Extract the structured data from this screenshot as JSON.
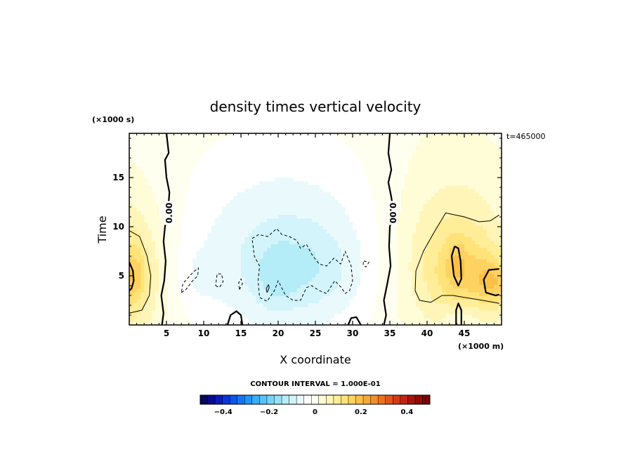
{
  "chart_data": {
    "type": "heatmap",
    "title": "density times vertical velocity",
    "xlabel": "X coordinate",
    "ylabel": "Time",
    "x_units": "(×1000 m)",
    "y_units": "(×1000 s)",
    "time_stamp": "t=465000",
    "xlim": [
      0,
      50
    ],
    "ylim": [
      0,
      19.5
    ],
    "x_ticks": [
      5,
      10,
      15,
      20,
      25,
      30,
      35,
      40,
      45
    ],
    "x_tick_labels": [
      "5",
      "10",
      "15",
      "20",
      "25",
      "30",
      "35",
      "40",
      "45"
    ],
    "y_ticks": [
      5,
      10,
      15
    ],
    "y_tick_labels": [
      "5",
      "10",
      "15"
    ],
    "contour_interval_text": "CONTOUR INTERVAL = 1.000E-01",
    "zero_contour_labels": [
      "0.00",
      "0.00"
    ],
    "zero_contour_label_positions": [
      [
        5.4,
        11.4
      ],
      [
        35.4,
        11.4
      ]
    ],
    "colorbar": {
      "range": [
        -0.5,
        0.5
      ],
      "tick_values": [
        -0.4,
        -0.2,
        0,
        0.2,
        0.4
      ],
      "tick_labels": [
        "−0.4",
        "−0.2",
        "0",
        "0.2",
        "0.4"
      ],
      "colors": [
        "#08085a",
        "#0a0a8c",
        "#0a1ab8",
        "#0a35d8",
        "#0a55ea",
        "#1275f0",
        "#1e95f5",
        "#3aaef8",
        "#58c2f8",
        "#78d4f5",
        "#96e2f5",
        "#b4ecf7",
        "#d2f4fa",
        "#eafafc",
        "#ffffff",
        "#fffff0",
        "#fffcd8",
        "#fff5b8",
        "#ffed98",
        "#ffe278",
        "#fed260",
        "#fcbf48",
        "#f8a838",
        "#f28f28",
        "#ea721c",
        "#e05518",
        "#d23b14",
        "#c02410",
        "#a8140c",
        "#900808",
        "#760404"
      ]
    },
    "blobs": [
      {
        "cx": -1.5,
        "cy": 5.5,
        "rx": 6.5,
        "ry": 9.5,
        "v": 0.09
      },
      {
        "cx": 0.0,
        "cy": 5.2,
        "rx": 3.5,
        "ry": 4.5,
        "v": 0.07
      },
      {
        "cx": 0.6,
        "cy": 5.0,
        "rx": 1.4,
        "ry": 2.2,
        "v": 0.04
      },
      {
        "cx": 21.0,
        "cy": 8.0,
        "rx": 14.5,
        "ry": 11.5,
        "v": -0.05
      },
      {
        "cx": 21.0,
        "cy": 7.0,
        "rx": 12.0,
        "ry": 7.5,
        "v": -0.04
      },
      {
        "cx": 23.5,
        "cy": 5.5,
        "rx": 7.0,
        "ry": 4.0,
        "v": -0.04
      },
      {
        "cx": 19.5,
        "cy": 4.5,
        "rx": 2.5,
        "ry": 3.2,
        "v": -0.03
      },
      {
        "cx": 9.0,
        "cy": 5.0,
        "rx": 3.0,
        "ry": 3.0,
        "v": -0.025
      },
      {
        "cx": 43.0,
        "cy": 7.5,
        "rx": 9.0,
        "ry": 12.0,
        "v": 0.06
      },
      {
        "cx": 44.0,
        "cy": 6.0,
        "rx": 6.5,
        "ry": 6.0,
        "v": 0.06
      },
      {
        "cx": 46.0,
        "cy": 5.0,
        "rx": 4.5,
        "ry": 3.5,
        "v": 0.05
      },
      {
        "cx": 49.0,
        "cy": 4.3,
        "rx": 2.3,
        "ry": 2.3,
        "v": 0.09
      },
      {
        "cx": 44.0,
        "cy": 6.5,
        "rx": 1.2,
        "ry": 2.5,
        "v": 0.04
      },
      {
        "cx": 44.5,
        "cy": 1.0,
        "rx": 3.0,
        "ry": 1.5,
        "v": -0.04
      }
    ],
    "contours": [
      {
        "level": 0.0,
        "style": "solid-thick",
        "points": [
          [
            5.0,
            19.5
          ],
          [
            5.3,
            17.5
          ],
          [
            4.8,
            16.8
          ],
          [
            5.0,
            15.0
          ],
          [
            5.4,
            13.5
          ],
          [
            5.2,
            11.5
          ],
          [
            4.8,
            10.0
          ],
          [
            4.6,
            8.5
          ],
          [
            4.9,
            6.5
          ],
          [
            4.7,
            4.5
          ],
          [
            4.3,
            3.0
          ],
          [
            4.6,
            1.2
          ],
          [
            4.4,
            0.0
          ]
        ]
      },
      {
        "level": 0.0,
        "style": "solid-thick",
        "points": [
          [
            35.0,
            19.5
          ],
          [
            34.8,
            17.5
          ],
          [
            35.2,
            15.8
          ],
          [
            34.8,
            14.5
          ],
          [
            35.2,
            13.0
          ],
          [
            35.5,
            11.5
          ],
          [
            35.0,
            10.0
          ],
          [
            34.9,
            8.0
          ],
          [
            35.1,
            6.0
          ],
          [
            34.6,
            4.0
          ],
          [
            34.2,
            2.5
          ],
          [
            34.5,
            1.0
          ],
          [
            34.2,
            0.0
          ]
        ]
      },
      {
        "level": 0.0,
        "style": "solid-thick",
        "points": [
          [
            13.2,
            0.0
          ],
          [
            13.6,
            1.0
          ],
          [
            14.4,
            1.4
          ],
          [
            15.0,
            1.0
          ],
          [
            15.2,
            0.0
          ]
        ]
      },
      {
        "level": 0.0,
        "style": "solid-thick",
        "points": [
          [
            29.4,
            0.0
          ],
          [
            29.8,
            0.7
          ],
          [
            30.5,
            0.8
          ],
          [
            31.1,
            0.0
          ]
        ]
      },
      {
        "level": 0.0,
        "style": "solid-thick",
        "points": [
          [
            0.0,
            6.4
          ],
          [
            0.5,
            5.5
          ],
          [
            0.6,
            4.5
          ],
          [
            0.3,
            3.7
          ],
          [
            0.0,
            3.5
          ]
        ]
      },
      {
        "level": 0.0,
        "style": "solid-thick",
        "points": [
          [
            43.7,
            8.0
          ],
          [
            43.3,
            7.0
          ],
          [
            43.6,
            5.0
          ],
          [
            44.2,
            4.0
          ],
          [
            44.6,
            4.7
          ],
          [
            44.5,
            6.5
          ],
          [
            44.2,
            7.8
          ],
          [
            43.7,
            8.0
          ]
        ]
      },
      {
        "level": 0.0,
        "style": "solid-thick",
        "points": [
          [
            49.7,
            5.7
          ],
          [
            48.3,
            5.6
          ],
          [
            47.6,
            4.6
          ],
          [
            47.9,
            3.3
          ],
          [
            49.2,
            3.0
          ],
          [
            49.7,
            3.1
          ]
        ]
      },
      {
        "level": 0.0,
        "style": "solid-thick",
        "points": [
          [
            43.9,
            0.0
          ],
          [
            43.9,
            1.5
          ],
          [
            44.2,
            2.2
          ],
          [
            44.6,
            1.5
          ],
          [
            44.6,
            0.0
          ]
        ]
      },
      {
        "level": 0.1,
        "style": "solid-thin",
        "points": [
          [
            0.0,
            9.6
          ],
          [
            1.4,
            9.0
          ],
          [
            2.4,
            7.0
          ],
          [
            2.9,
            5.0
          ],
          [
            2.7,
            3.0
          ],
          [
            1.7,
            1.5
          ],
          [
            0.0,
            1.2
          ]
        ]
      },
      {
        "level": 0.1,
        "style": "solid-thin",
        "points": [
          [
            49.7,
            11.2
          ],
          [
            48.5,
            10.6
          ],
          [
            47.0,
            10.5
          ],
          [
            45.0,
            11.0
          ],
          [
            42.5,
            11.4
          ],
          [
            41.0,
            9.5
          ],
          [
            39.5,
            7.5
          ],
          [
            38.5,
            5.5
          ],
          [
            38.4,
            3.5
          ],
          [
            39.0,
            2.5
          ],
          [
            40.5,
            2.3
          ],
          [
            42.0,
            3.0
          ],
          [
            43.5,
            3.0
          ],
          [
            45.0,
            2.8
          ],
          [
            47.5,
            2.5
          ],
          [
            49.7,
            2.2
          ]
        ]
      },
      {
        "level": -0.1,
        "style": "dashed",
        "points": [
          [
            16.5,
            8.8
          ],
          [
            17.4,
            9.2
          ],
          [
            18.6,
            9.0
          ],
          [
            19.8,
            9.8
          ],
          [
            20.5,
            9.2
          ],
          [
            21.5,
            9.0
          ],
          [
            22.5,
            8.6
          ],
          [
            23.0,
            7.8
          ],
          [
            23.8,
            8.2
          ],
          [
            24.5,
            7.2
          ],
          [
            25.5,
            6.2
          ],
          [
            26.5,
            6.0
          ],
          [
            27.5,
            6.8
          ],
          [
            28.4,
            6.2
          ],
          [
            29.0,
            7.5
          ],
          [
            29.8,
            6.0
          ],
          [
            30.0,
            4.5
          ],
          [
            29.6,
            3.5
          ],
          [
            29.0,
            3.2
          ],
          [
            28.5,
            3.8
          ],
          [
            27.6,
            4.5
          ],
          [
            26.5,
            3.2
          ],
          [
            25.5,
            3.5
          ],
          [
            24.5,
            4.0
          ],
          [
            23.8,
            3.8
          ],
          [
            23.0,
            2.5
          ],
          [
            22.0,
            2.5
          ],
          [
            21.0,
            3.0
          ],
          [
            20.0,
            4.5
          ],
          [
            19.5,
            3.5
          ],
          [
            18.5,
            2.4
          ],
          [
            17.5,
            2.8
          ],
          [
            17.3,
            4.5
          ],
          [
            17.5,
            6.0
          ],
          [
            16.8,
            7.0
          ],
          [
            16.5,
            8.8
          ]
        ]
      },
      {
        "level": -0.1,
        "style": "dashed",
        "points": [
          [
            7.0,
            3.3
          ],
          [
            7.6,
            3.6
          ],
          [
            8.4,
            4.4
          ],
          [
            9.2,
            5.0
          ],
          [
            9.3,
            5.8
          ],
          [
            8.6,
            5.4
          ],
          [
            7.9,
            4.8
          ],
          [
            7.2,
            4.2
          ],
          [
            7.0,
            3.3
          ]
        ]
      },
      {
        "level": -0.1,
        "style": "dashed",
        "points": [
          [
            11.6,
            4.0
          ],
          [
            12.1,
            3.8
          ],
          [
            12.6,
            4.4
          ],
          [
            12.4,
            5.2
          ],
          [
            11.8,
            5.2
          ],
          [
            11.6,
            4.0
          ]
        ]
      },
      {
        "level": -0.1,
        "style": "dashed",
        "points": [
          [
            14.8,
            3.6
          ],
          [
            15.2,
            4.2
          ],
          [
            15.0,
            4.7
          ],
          [
            14.7,
            4.3
          ],
          [
            14.8,
            3.6
          ]
        ]
      },
      {
        "level": -0.1,
        "style": "dashed",
        "points": [
          [
            31.5,
            6.5
          ],
          [
            32.2,
            6.4
          ],
          [
            31.8,
            5.9
          ],
          [
            31.4,
            6.1
          ],
          [
            31.5,
            6.5
          ]
        ]
      },
      {
        "level": -0.2,
        "style": "solid-thin",
        "points": [
          [
            18.5,
            3.3
          ],
          [
            18.8,
            3.8
          ],
          [
            18.7,
            4.1
          ],
          [
            18.4,
            3.7
          ],
          [
            18.5,
            3.3
          ]
        ]
      }
    ]
  }
}
